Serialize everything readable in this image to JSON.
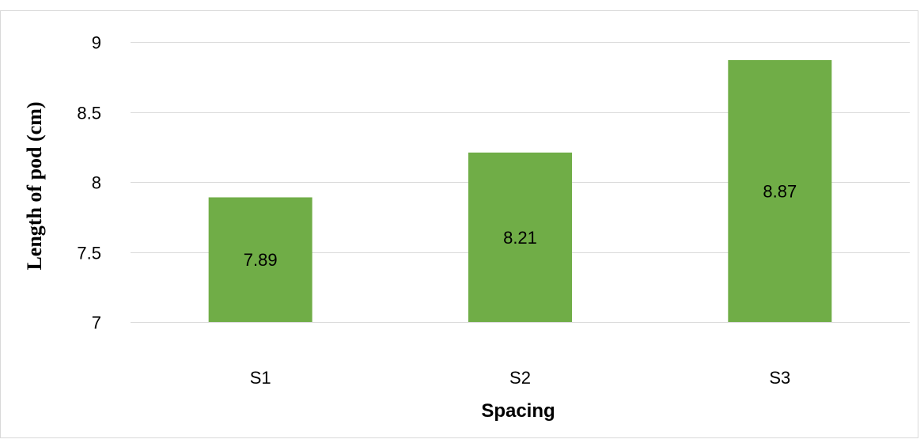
{
  "chart_data": {
    "type": "bar",
    "title": "",
    "xlabel": "Spacing",
    "ylabel": "Length of pod (cm)",
    "categories": [
      "S1",
      "S2",
      "S3"
    ],
    "values": [
      7.89,
      8.21,
      8.87
    ],
    "data_labels": [
      "7.89",
      "8.21",
      "8.87"
    ],
    "ylim": [
      7,
      9
    ],
    "yticks": [
      7,
      7.5,
      8,
      8.5,
      9
    ],
    "ytick_labels": [
      "7",
      "7.5",
      "8",
      "8.5",
      "9"
    ],
    "grid": true,
    "legend": "none",
    "bar_color": "#70ad47",
    "grid_color": "#d9d9d9"
  }
}
